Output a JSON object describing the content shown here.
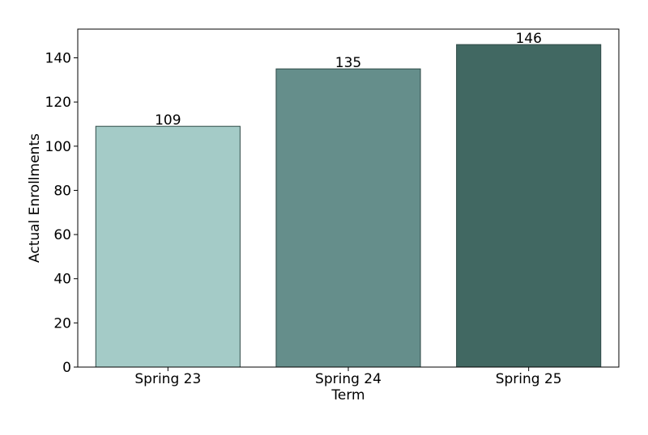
{
  "chart_data": {
    "type": "bar",
    "categories": [
      "Spring 23",
      "Spring 24",
      "Spring 25"
    ],
    "values": [
      109,
      135,
      146
    ],
    "data_labels": [
      "109",
      "135",
      "146"
    ],
    "xlabel": "Term",
    "ylabel": "Actual Enrollments",
    "ylim": [
      0,
      153
    ],
    "yticks": [
      0,
      20,
      40,
      60,
      80,
      100,
      120,
      140
    ],
    "ytick_labels": [
      "0",
      "20",
      "40",
      "60",
      "80",
      "100",
      "120",
      "140"
    ],
    "grid": false,
    "legend": "none",
    "bar_colors": [
      "#a4cbc7",
      "#658e8b",
      "#416862"
    ],
    "bar_edge_color": "#2f4a47",
    "axis_color": "#000000"
  }
}
